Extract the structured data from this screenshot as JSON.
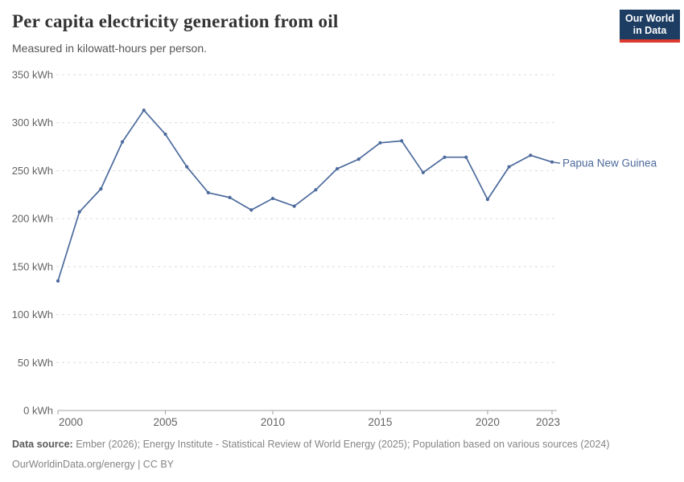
{
  "header": {
    "title": "Per capita electricity generation from oil",
    "subtitle": "Measured in kilowatt-hours per person.",
    "logo": {
      "line1": "Our World",
      "line2": "in Data"
    }
  },
  "chart_data": {
    "type": "line",
    "title": "Per capita electricity generation from oil",
    "ylabel": "kilowatt-hours per person",
    "unit": "kWh",
    "x": [
      2000,
      2001,
      2002,
      2003,
      2004,
      2005,
      2006,
      2007,
      2008,
      2009,
      2010,
      2011,
      2012,
      2013,
      2014,
      2015,
      2016,
      2017,
      2018,
      2019,
      2020,
      2021,
      2022,
      2023
    ],
    "series": [
      {
        "name": "Papua New Guinea",
        "values": [
          135,
          207,
          231,
          280,
          313,
          288,
          254,
          227,
          222,
          209,
          221,
          213,
          230,
          252,
          262,
          279,
          281,
          248,
          264,
          264,
          220,
          254,
          266,
          259
        ]
      }
    ],
    "x_ticks": [
      2000,
      2005,
      2010,
      2015,
      2020,
      2023
    ],
    "y_ticks": [
      0,
      50,
      100,
      150,
      200,
      250,
      300,
      350
    ],
    "y_tick_suffix": " kWh",
    "xlim": [
      2000,
      2023
    ],
    "ylim": [
      0,
      350
    ],
    "grid": "horizontal-dashed",
    "legend_position": "end-of-line",
    "end_label": "Papua New Guinea"
  },
  "footer": {
    "source_label": "Data source:",
    "source_text": "Ember (2026); Energy Institute - Statistical Review of World Energy (2025); Population based on various sources (2024)",
    "license_text": "OurWorldinData.org/energy | CC BY"
  },
  "colors": {
    "line": "#4c6a9c",
    "grid": "#dcdcdc",
    "axis": "#a3a3a3",
    "tick_label": "#636363",
    "title": "#333333",
    "subtitle": "#555555",
    "footer": "#858585",
    "footer_label": "#5b5b5b",
    "logo_bg": "#1d3d63",
    "logo_red": "#dc3a2f"
  }
}
